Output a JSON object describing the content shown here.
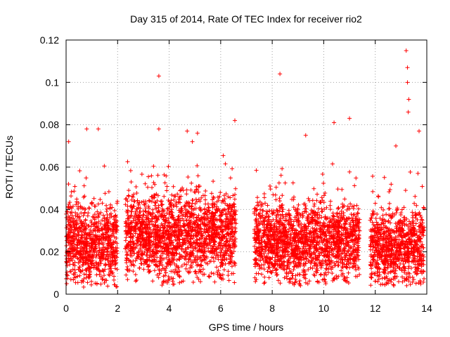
{
  "chart_data": {
    "type": "scatter",
    "title": "Day 315 of 2014, Rate Of TEC Index for receiver rio2",
    "xlabel": "GPS time / hours",
    "ylabel": "ROTI / TECUs",
    "xlim": [
      0,
      14
    ],
    "ylim": [
      0,
      0.12
    ],
    "xticks": [
      0,
      2,
      4,
      6,
      8,
      10,
      12,
      14
    ],
    "xtick_labels": [
      "0",
      "2",
      "4",
      "6",
      "8",
      "10",
      "12",
      "14"
    ],
    "yticks": [
      0,
      0.02,
      0.04,
      0.06,
      0.08,
      0.1,
      0.12
    ],
    "ytick_labels": [
      "0",
      "0.02",
      "0.04",
      "0.06",
      "0.08",
      "0.1",
      "0.12"
    ],
    "grid": true,
    "marker": "+",
    "color": "#ff0000",
    "data_segments": [
      {
        "x_start": 0.0,
        "x_end": 2.0,
        "y_min": 0.003,
        "y_center": 0.024,
        "y_spread": 0.03
      },
      {
        "x_start": 2.3,
        "x_end": 6.6,
        "y_min": 0.004,
        "y_center": 0.028,
        "y_spread": 0.033
      },
      {
        "x_start": 7.3,
        "x_end": 11.4,
        "y_min": 0.004,
        "y_center": 0.025,
        "y_spread": 0.03
      },
      {
        "x_start": 11.8,
        "x_end": 13.9,
        "y_min": 0.004,
        "y_center": 0.022,
        "y_spread": 0.028
      }
    ],
    "outliers": [
      {
        "x": 3.6,
        "y": 0.103
      },
      {
        "x": 3.6,
        "y": 0.078
      },
      {
        "x": 8.3,
        "y": 0.104
      },
      {
        "x": 13.2,
        "y": 0.115
      },
      {
        "x": 13.25,
        "y": 0.107
      },
      {
        "x": 13.25,
        "y": 0.1
      },
      {
        "x": 13.3,
        "y": 0.092
      },
      {
        "x": 13.28,
        "y": 0.086
      },
      {
        "x": 10.4,
        "y": 0.081
      },
      {
        "x": 11.0,
        "y": 0.083
      },
      {
        "x": 6.55,
        "y": 0.082
      },
      {
        "x": 4.7,
        "y": 0.077
      },
      {
        "x": 5.1,
        "y": 0.076
      },
      {
        "x": 0.8,
        "y": 0.078
      },
      {
        "x": 1.25,
        "y": 0.078
      },
      {
        "x": 13.7,
        "y": 0.077
      },
      {
        "x": 0.1,
        "y": 0.072
      },
      {
        "x": 9.3,
        "y": 0.075
      },
      {
        "x": 12.8,
        "y": 0.07
      },
      {
        "x": 4.9,
        "y": 0.072
      }
    ]
  }
}
